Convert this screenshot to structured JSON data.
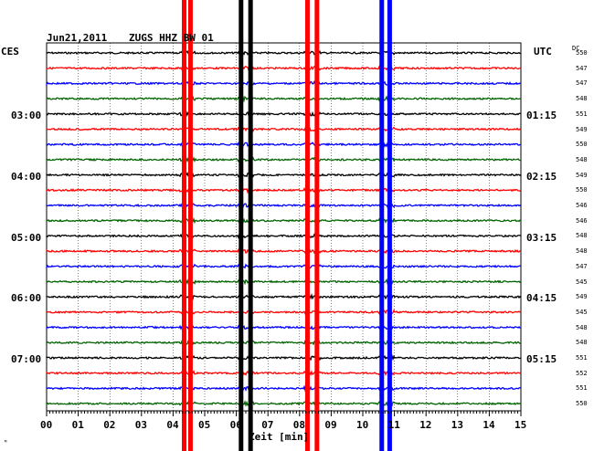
{
  "header": {
    "date": "Jun21,2011",
    "station": "ZUGS HHZ BW 01",
    "left_tz": "CES",
    "right_tz": "UTC",
    "dc_label": "DC"
  },
  "x_axis": {
    "title": "Zeit [min]",
    "ticks": [
      "00",
      "01",
      "02",
      "03",
      "04",
      "05",
      "06",
      "07",
      "08",
      "09",
      "10",
      "11",
      "12",
      "13",
      "14",
      "15"
    ],
    "range": [
      0,
      15
    ]
  },
  "time_labels": {
    "left": [
      "03:00",
      "04:00",
      "05:00",
      "06:00",
      "07:00"
    ],
    "right": [
      "01:15",
      "02:15",
      "03:15",
      "04:15",
      "05:15"
    ]
  },
  "footer": {
    "mark": "ᴹ"
  },
  "colors": {
    "trace_cycle": [
      "#000000",
      "#ff0000",
      "#0000ff",
      "#006400"
    ],
    "grid": "#000000"
  },
  "traces": {
    "count": 24,
    "dc_values": [
      "550",
      "547",
      "547",
      "548",
      "551",
      "549",
      "550",
      "548",
      "549",
      "550",
      "546",
      "546",
      "548",
      "548",
      "547",
      "545",
      "549",
      "545",
      "548",
      "548",
      "551",
      "552",
      "551",
      "550"
    ]
  },
  "events": [
    {
      "minute": 4.45,
      "color": "#ff0000",
      "lines": [
        4.35,
        4.55
      ]
    },
    {
      "minute": 6.3,
      "color": "#000000",
      "lines": [
        6.15,
        6.45
      ]
    },
    {
      "minute": 8.4,
      "color": "#ff0000",
      "lines": [
        8.25,
        8.55
      ]
    },
    {
      "minute": 10.75,
      "color": "#0000ff",
      "lines": [
        10.6,
        10.85
      ]
    }
  ]
}
